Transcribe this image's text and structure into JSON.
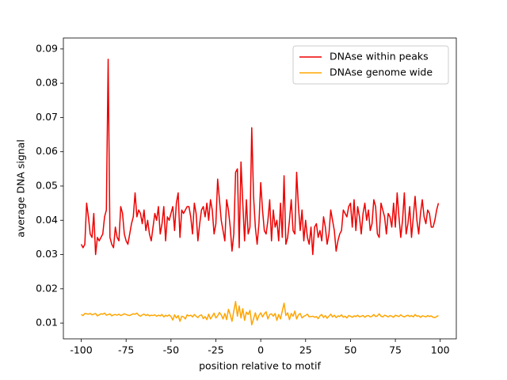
{
  "chart_data": {
    "type": "line",
    "xlabel": "position relative to motif",
    "ylabel": "average DNA signal",
    "x": [
      -100,
      -99,
      -98,
      -97,
      -96,
      -95,
      -94,
      -93,
      -92,
      -91,
      -90,
      -89,
      -88,
      -87,
      -86,
      -85,
      -84,
      -83,
      -82,
      -81,
      -80,
      -79,
      -78,
      -77,
      -76,
      -75,
      -74,
      -73,
      -72,
      -71,
      -70,
      -69,
      -68,
      -67,
      -66,
      -65,
      -64,
      -63,
      -62,
      -61,
      -60,
      -59,
      -58,
      -57,
      -56,
      -55,
      -54,
      -53,
      -52,
      -51,
      -50,
      -49,
      -48,
      -47,
      -46,
      -45,
      -44,
      -43,
      -42,
      -41,
      -40,
      -39,
      -38,
      -37,
      -36,
      -35,
      -34,
      -33,
      -32,
      -31,
      -30,
      -29,
      -28,
      -27,
      -26,
      -25,
      -24,
      -23,
      -22,
      -21,
      -20,
      -19,
      -18,
      -17,
      -16,
      -15,
      -14,
      -13,
      -12,
      -11,
      -10,
      -9,
      -8,
      -7,
      -6,
      -5,
      -4,
      -3,
      -2,
      -1,
      0,
      1,
      2,
      3,
      4,
      5,
      6,
      7,
      8,
      9,
      10,
      11,
      12,
      13,
      14,
      15,
      16,
      17,
      18,
      19,
      20,
      21,
      22,
      23,
      24,
      25,
      26,
      27,
      28,
      29,
      30,
      31,
      32,
      33,
      34,
      35,
      36,
      37,
      38,
      39,
      40,
      41,
      42,
      43,
      44,
      45,
      46,
      47,
      48,
      49,
      50,
      51,
      52,
      53,
      54,
      55,
      56,
      57,
      58,
      59,
      60,
      61,
      62,
      63,
      64,
      65,
      66,
      67,
      68,
      69,
      70,
      71,
      72,
      73,
      74,
      75,
      76,
      77,
      78,
      79,
      80,
      81,
      82,
      83,
      84,
      85,
      86,
      87,
      88,
      89,
      90,
      91,
      92,
      93,
      94,
      95,
      96,
      97,
      98,
      99
    ],
    "series": [
      {
        "name": "DNAse within peaks",
        "color": "#ee0000",
        "values": [
          0.033,
          0.032,
          0.033,
          0.045,
          0.041,
          0.036,
          0.035,
          0.042,
          0.03,
          0.035,
          0.034,
          0.035,
          0.036,
          0.041,
          0.043,
          0.087,
          0.035,
          0.033,
          0.032,
          0.038,
          0.035,
          0.034,
          0.044,
          0.042,
          0.036,
          0.034,
          0.033,
          0.036,
          0.039,
          0.041,
          0.048,
          0.041,
          0.043,
          0.042,
          0.039,
          0.043,
          0.037,
          0.04,
          0.036,
          0.034,
          0.038,
          0.042,
          0.04,
          0.044,
          0.036,
          0.039,
          0.044,
          0.034,
          0.041,
          0.04,
          0.042,
          0.044,
          0.037,
          0.045,
          0.048,
          0.035,
          0.043,
          0.042,
          0.043,
          0.044,
          0.044,
          0.041,
          0.036,
          0.045,
          0.042,
          0.034,
          0.039,
          0.043,
          0.044,
          0.041,
          0.045,
          0.04,
          0.046,
          0.043,
          0.036,
          0.039,
          0.052,
          0.046,
          0.04,
          0.037,
          0.034,
          0.046,
          0.043,
          0.038,
          0.031,
          0.036,
          0.054,
          0.055,
          0.032,
          0.057,
          0.045,
          0.034,
          0.046,
          0.036,
          0.038,
          0.067,
          0.047,
          0.038,
          0.033,
          0.039,
          0.051,
          0.043,
          0.037,
          0.036,
          0.04,
          0.046,
          0.034,
          0.043,
          0.038,
          0.04,
          0.034,
          0.045,
          0.035,
          0.053,
          0.033,
          0.035,
          0.04,
          0.046,
          0.037,
          0.036,
          0.054,
          0.044,
          0.037,
          0.043,
          0.034,
          0.04,
          0.035,
          0.033,
          0.038,
          0.03,
          0.038,
          0.039,
          0.035,
          0.037,
          0.034,
          0.041,
          0.038,
          0.033,
          0.036,
          0.043,
          0.04,
          0.037,
          0.031,
          0.034,
          0.036,
          0.037,
          0.043,
          0.042,
          0.041,
          0.044,
          0.045,
          0.038,
          0.046,
          0.037,
          0.044,
          0.041,
          0.036,
          0.042,
          0.045,
          0.04,
          0.043,
          0.037,
          0.039,
          0.046,
          0.044,
          0.036,
          0.035,
          0.045,
          0.043,
          0.041,
          0.036,
          0.042,
          0.041,
          0.038,
          0.045,
          0.038,
          0.048,
          0.041,
          0.035,
          0.04,
          0.048,
          0.036,
          0.039,
          0.044,
          0.035,
          0.041,
          0.047,
          0.04,
          0.036,
          0.042,
          0.046,
          0.041,
          0.039,
          0.043,
          0.042,
          0.038,
          0.038,
          0.04,
          0.043,
          0.045
        ]
      },
      {
        "name": "DNAse genome wide",
        "color": "#ffa500",
        "values": [
          0.0125,
          0.0122,
          0.0128,
          0.0127,
          0.0126,
          0.0128,
          0.0124,
          0.0126,
          0.0128,
          0.0121,
          0.0124,
          0.0127,
          0.0126,
          0.0129,
          0.0123,
          0.0125,
          0.0127,
          0.0121,
          0.0124,
          0.0125,
          0.0123,
          0.0126,
          0.0122,
          0.0124,
          0.0127,
          0.0125,
          0.0123,
          0.0122,
          0.0125,
          0.0127,
          0.0126,
          0.0129,
          0.0123,
          0.012,
          0.0124,
          0.0126,
          0.0122,
          0.0125,
          0.0121,
          0.0123,
          0.0122,
          0.0124,
          0.012,
          0.0123,
          0.0121,
          0.0125,
          0.0118,
          0.0123,
          0.012,
          0.0124,
          0.0119,
          0.0109,
          0.0124,
          0.0115,
          0.0122,
          0.0105,
          0.012,
          0.0118,
          0.0112,
          0.0124,
          0.0121,
          0.0123,
          0.0118,
          0.0125,
          0.012,
          0.0116,
          0.0122,
          0.0124,
          0.0113,
          0.0119,
          0.011,
          0.0126,
          0.0112,
          0.012,
          0.0129,
          0.0115,
          0.0121,
          0.0131,
          0.0124,
          0.0112,
          0.0128,
          0.011,
          0.014,
          0.0125,
          0.0105,
          0.0135,
          0.0163,
          0.012,
          0.015,
          0.0115,
          0.0142,
          0.0108,
          0.0132,
          0.0125,
          0.0137,
          0.0095,
          0.0112,
          0.013,
          0.0108,
          0.0122,
          0.013,
          0.0118,
          0.0127,
          0.0133,
          0.0112,
          0.0125,
          0.0127,
          0.012,
          0.0128,
          0.0108,
          0.0125,
          0.0112,
          0.0135,
          0.0158,
          0.0122,
          0.013,
          0.011,
          0.0128,
          0.012,
          0.0135,
          0.0112,
          0.0124,
          0.0128,
          0.0115,
          0.012,
          0.0122,
          0.0126,
          0.0118,
          0.0119,
          0.012,
          0.0117,
          0.0119,
          0.0113,
          0.0121,
          0.0125,
          0.0116,
          0.0122,
          0.0114,
          0.012,
          0.0126,
          0.0118,
          0.0123,
          0.0116,
          0.0121,
          0.0119,
          0.0124,
          0.0117,
          0.012,
          0.0115,
          0.0122,
          0.012,
          0.0117,
          0.0121,
          0.0119,
          0.0123,
          0.0118,
          0.012,
          0.0122,
          0.0117,
          0.0121,
          0.0122,
          0.0118,
          0.012,
          0.0125,
          0.0119,
          0.0121,
          0.0127,
          0.012,
          0.0118,
          0.0123,
          0.0121,
          0.0118,
          0.0122,
          0.012,
          0.0117,
          0.0123,
          0.0121,
          0.0119,
          0.0124,
          0.012,
          0.0118,
          0.0121,
          0.0123,
          0.0119,
          0.0122,
          0.0118,
          0.0125,
          0.012,
          0.0121,
          0.0117,
          0.0121,
          0.012,
          0.0118,
          0.0122,
          0.0119,
          0.0121,
          0.0117,
          0.0116,
          0.0119,
          0.0122
        ]
      }
    ],
    "xlim": [
      -109.95,
      108.95
    ],
    "ylim": [
      0.0054,
      0.0932
    ],
    "xticks": [
      -100,
      -75,
      -50,
      -25,
      0,
      25,
      50,
      75,
      100
    ],
    "yticks": [
      0.01,
      0.02,
      0.03,
      0.04,
      0.05,
      0.06,
      0.07,
      0.08,
      0.09
    ],
    "legend": "upper right",
    "grid": false
  }
}
